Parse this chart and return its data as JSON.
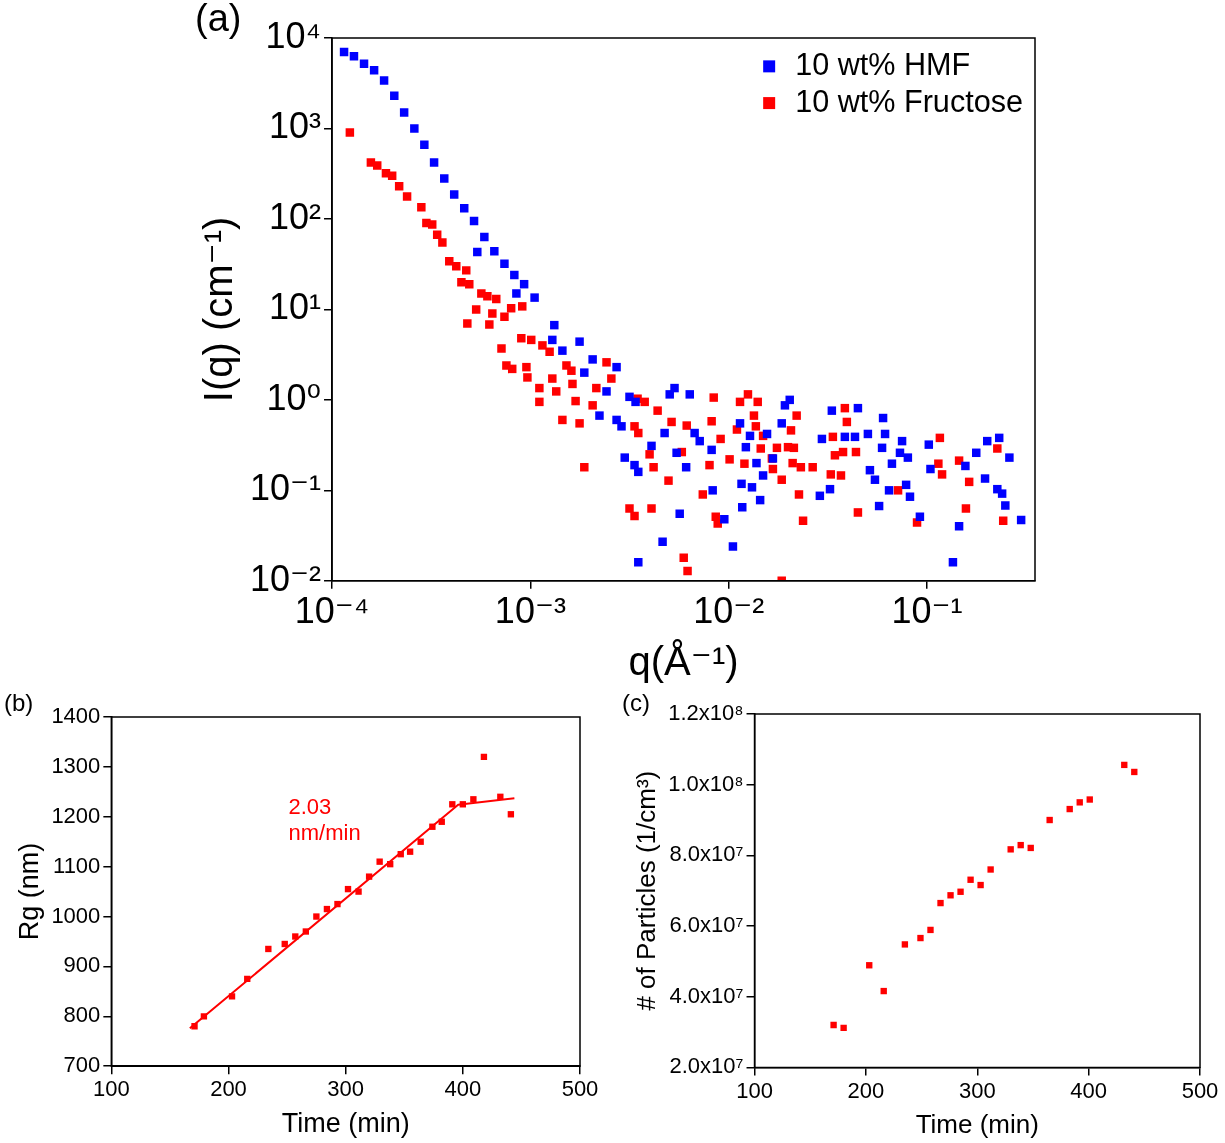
{
  "chart_data": [
    {
      "type": "scatter",
      "title": "(a)",
      "xlabel": "q(Å⁻¹)",
      "ylabel": "I(q) (cm⁻¹)",
      "log": "xy",
      "marker": "square",
      "legend": "top right",
      "xlim": [
        0.0001,
        0.35
      ],
      "xticks": [
        {
          "value": 0.0001,
          "label": "10⁻⁴"
        },
        {
          "value": 0.001,
          "label": "10⁻³"
        },
        {
          "value": 0.01,
          "label": "10⁻²"
        },
        {
          "value": 0.1,
          "label": "10⁻¹"
        }
      ],
      "ylim": [
        0.01,
        10000
      ],
      "yticks": [
        {
          "value": 0.01,
          "label": "10⁻²"
        },
        {
          "value": 0.1,
          "label": "10⁻¹"
        },
        {
          "value": 1,
          "label": "10⁰"
        },
        {
          "value": 10,
          "label": "10¹"
        },
        {
          "value": 100,
          "label": "10²"
        },
        {
          "value": 1000,
          "label": "10³"
        },
        {
          "value": 10000,
          "label": "10⁴"
        }
      ],
      "series": [
        {
          "name": "10 wt% HMF",
          "color": "#0000ff",
          "x": [
            0.000115,
            0.000129,
            0.000145,
            0.000163,
            0.000183,
            0.000206,
            0.000231,
            0.00026,
            0.000292,
            0.000327,
            0.000368,
            0.000413,
            0.000464,
            0.00052,
            0.000586,
            0.000658,
            0.00074,
            0.00083,
            0.00093,
            0.00105,
            0.00085,
            0.00054,
            0.00132,
            0.00129,
            0.00145,
            0.00177,
            0.00187,
            0.00206,
            0.00242,
            0.00272,
            0.00223,
            0.00272,
            0.00316,
            0.00299,
            0.00335,
            0.0035,
            0.00288,
            0.0035,
            0.00339,
            0.00408,
            0.00464,
            0.00475,
            0.00504,
            0.00533,
            0.00546,
            0.00566,
            0.0061,
            0.00636,
            0.00673,
            0.00714,
            0.0082,
            0.0083,
            0.0095,
            0.0105,
            0.0114,
            0.0116,
            0.0122,
            0.0117,
            0.0128,
            0.0131,
            0.0138,
            0.0144,
            0.0149,
            0.0156,
            0.0167,
            0.0185,
            0.0192,
            0.0203,
            0.0288,
            0.0295,
            0.0324,
            0.0331,
            0.0385,
            0.0433,
            0.0448,
            0.0503,
            0.0515,
            0.0546,
            0.0573,
            0.06,
            0.0614,
            0.0593,
            0.0643,
            0.0665,
            0.0748,
            0.073,
            0.08,
            0.0784,
            0.082,
            0.092,
            0.102,
            0.104,
            0.135,
            0.145,
            0.156,
            0.177,
            0.196,
            0.201,
            0.231,
            0.226,
            0.239,
            0.248,
            0.26,
            0.298
          ],
          "values": [
            7000,
            6300,
            5200,
            4400,
            3400,
            2300,
            1500,
            1000,
            660,
            420,
            280,
            186,
            131,
            95,
            63,
            44,
            32,
            24,
            19,
            13.5,
            15,
            43,
            6.7,
            4.6,
            3.5,
            4.4,
            2.0,
            2.8,
            1.24,
            2.3,
            0.67,
            0.6,
            1.08,
            0.23,
            0.19,
            0.016,
            0.51,
            0.16,
            0.95,
            0.31,
            0.027,
            0.43,
            1.15,
            1.35,
            0.26,
            0.055,
            0.18,
            1.15,
            0.43,
            0.35,
            0.28,
            0.1,
            0.048,
            0.024,
            0.55,
            0.118,
            0.3,
            0.065,
            0.4,
            0.108,
            0.2,
            0.078,
            0.146,
            0.42,
            0.225,
            0.55,
            0.87,
            1.0,
            0.087,
            0.37,
            0.103,
            0.76,
            0.39,
            0.39,
            0.81,
            0.42,
            0.167,
            0.131,
            0.067,
            0.63,
            0.42,
            0.295,
            0.1,
            0.197,
            0.35,
            0.26,
            0.23,
            0.115,
            0.085,
            0.051,
            0.32,
            0.172,
            0.016,
            0.04,
            0.186,
            0.26,
            0.135,
            0.35,
            0.38,
            0.103,
            0.092,
            0.068,
            0.23,
            0.047
          ]
        },
        {
          "name": "10 wt% Fructose",
          "color": "#ff0000",
          "x": [
            0.000123,
            0.000157,
            0.000169,
            0.000187,
            0.000201,
            0.000218,
            0.000239,
            0.000282,
            0.000299,
            0.00032,
            0.000339,
            0.00036,
            0.00039,
            0.000423,
            0.000449,
            0.000475,
            0.000492,
            0.000481,
            0.000533,
            0.000566,
            0.000607,
            0.000621,
            0.000643,
            0.000673,
            0.00074,
            0.0008,
            0.00091,
            0.000715,
            0.000757,
            0.00081,
            0.0009,
            0.00101,
            0.000955,
            0.000966,
            0.00111,
            0.00111,
            0.00115,
            0.00125,
            0.00129,
            0.00135,
            0.00145,
            0.00152,
            0.00161,
            0.00163,
            0.00169,
            0.00177,
            0.00187,
            0.00206,
            0.00215,
            0.00242,
            0.00256,
            0.00316,
            0.00335,
            0.00347,
            0.00377,
            0.00438,
            0.0035,
            0.00399,
            0.00418,
            0.00335,
            0.00408,
            0.00497,
            0.00515,
            0.0058,
            0.00614,
            0.00593,
            0.0062,
            0.0074,
            0.008,
            0.0084,
            0.0082,
            0.0086,
            0.0088,
            0.0091,
            0.0101,
            0.011,
            0.0114,
            0.0125,
            0.014,
            0.0134,
            0.0137,
            0.012,
            0.0149,
            0.0145,
            0.0165,
            0.0167,
            0.0185,
            0.0185,
            0.0175,
            0.0199,
            0.0213,
            0.022,
            0.0206,
            0.021,
            0.0231,
            0.0226,
            0.0237,
            0.0265,
            0.0335,
            0.0327,
            0.0385,
            0.0394,
            0.0343,
            0.0377,
            0.0368,
            0.0438,
            0.0448,
            0.0714,
            0.089,
            0.116,
            0.114,
            0.119,
            0.145,
            0.163,
            0.157,
            0.226,
            0.242
          ],
          "values": [
            900,
            420,
            390,
            320,
            300,
            230,
            177,
            135,
            90,
            87,
            67,
            55,
            34,
            30,
            20,
            27,
            19,
            7.0,
            10,
            15,
            14,
            6.8,
            9.0,
            13,
            8.3,
            10.3,
            10.8,
            3.7,
            2.4,
            2.2,
            4.8,
            4.6,
            2.3,
            1.77,
            1.35,
            0.95,
            4.0,
            3.4,
            1.72,
            1.24,
            0.6,
            2.4,
            2.1,
            1.5,
            0.97,
            0.55,
            0.18,
            0.87,
            1.35,
            2.6,
            1.72,
            0.063,
            0.51,
            1.03,
            0.95,
            0.76,
            0.43,
            0.25,
            0.18,
            0.052,
            0.063,
            0.128,
            0.57,
            0.265,
            0.52,
            0.018,
            0.0128,
            0.09,
            0.19,
            1.06,
            0.58,
            0.051,
            0.043,
            0.37,
            0.22,
            0.47,
            0.95,
            1.15,
            0.95,
            0.67,
            0.51,
            0.197,
            0.4,
            0.29,
            0.225,
            0.172,
            0.131,
            0.01,
            0.295,
            0.3,
            0.295,
            0.67,
            0.46,
            0.2,
            0.18,
            0.09,
            0.046,
            0.18,
            0.39,
            0.15,
            0.81,
            0.57,
            0.244,
            0.265,
            0.146,
            0.265,
            0.057,
            0.1,
            0.044,
            0.38,
            0.197,
            0.15,
            0.213,
            0.124,
            0.063,
            0.29,
            0.046
          ]
        }
      ]
    },
    {
      "type": "scatter",
      "title": "(b)",
      "xlabel": "Time (min)",
      "ylabel": "Rg (nm)",
      "marker": "square",
      "xlim": [
        100,
        500
      ],
      "xticks": [
        100,
        200,
        300,
        400,
        500
      ],
      "ylim": [
        700,
        1400
      ],
      "yticks": [
        700,
        800,
        900,
        1000,
        1100,
        1200,
        1300,
        1400
      ],
      "annotations": [
        "2.03\nnm/min"
      ],
      "series": [
        {
          "color": "#ff0000",
          "x": [
            171,
            179,
            203,
            216,
            234,
            248,
            257,
            266,
            275,
            284,
            293,
            302,
            311,
            320,
            329,
            338,
            347,
            355,
            364,
            374,
            382,
            391,
            400,
            409,
            418,
            432,
            441
          ],
          "values": [
            780,
            800,
            840,
            875,
            935,
            945,
            960,
            970,
            1000,
            1015,
            1025,
            1055,
            1050,
            1080,
            1110,
            1105,
            1125,
            1130,
            1150,
            1180,
            1190,
            1225,
            1225,
            1235,
            1320,
            1240,
            1205
          ]
        },
        {
          "type": "line",
          "marker": "none",
          "color": "#ff0000",
          "x": [
            167,
            396,
            444
          ],
          "values": [
            776,
            1224,
            1237
          ]
        }
      ]
    },
    {
      "type": "scatter",
      "title": "(c)",
      "xlabel": "Time (min)",
      "ylabel": "# of Particles (1/cm³)",
      "marker": "square",
      "xlim": [
        100,
        500
      ],
      "xticks": [
        100,
        200,
        300,
        400,
        500
      ],
      "ylim": [
        20000000,
        120000000
      ],
      "yticks": [
        {
          "value": 20000000,
          "label": "2.0x10⁷"
        },
        {
          "value": 40000000,
          "label": "4.0x10⁷"
        },
        {
          "value": 60000000,
          "label": "6.0x10⁷"
        },
        {
          "value": 80000000,
          "label": "8.0x10⁷"
        },
        {
          "value": 100000000,
          "label": "1.0x10⁸"
        },
        {
          "value": 120000000,
          "label": "1.2x10⁸"
        }
      ],
      "series": [
        {
          "color": "#ff0000",
          "x": [
            171,
            180,
            203,
            216,
            235,
            249,
            258,
            267,
            276,
            285,
            294,
            303,
            312,
            330,
            339,
            348,
            365,
            383,
            392,
            401,
            432,
            441
          ],
          "values": [
            32000000,
            31200000,
            48900000,
            41600000,
            54800000,
            56600000,
            58900000,
            66500000,
            68700000,
            69700000,
            73100000,
            71600000,
            76000000,
            81700000,
            82900000,
            82100000,
            90000000,
            93100000,
            95000000,
            95800000,
            105600000,
            103600000
          ]
        }
      ]
    }
  ]
}
